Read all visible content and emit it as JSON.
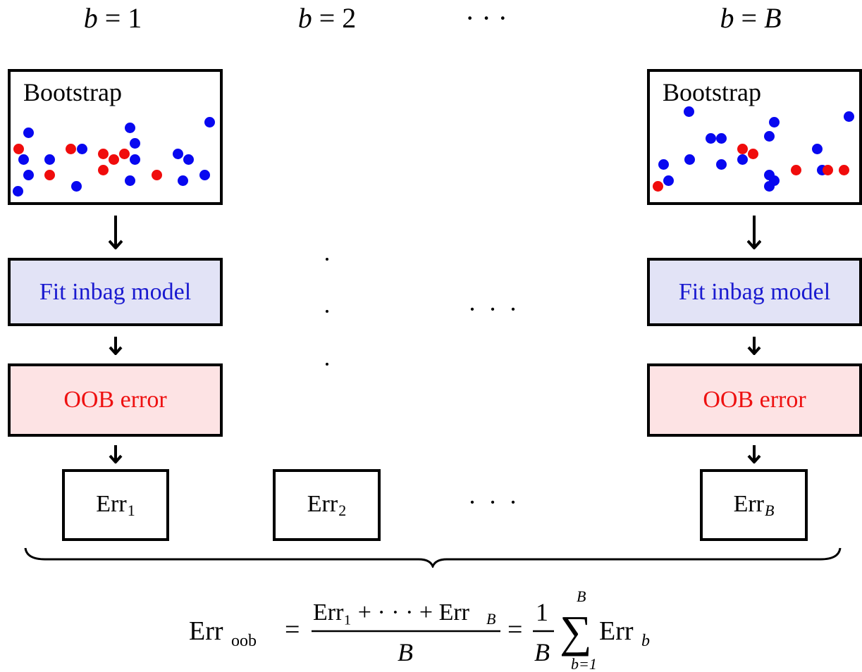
{
  "columns": [
    {
      "label_var": "b",
      "label_eq": "=",
      "label_val": "1"
    },
    {
      "label_var": "b",
      "label_eq": "=",
      "label_val": "2"
    },
    {
      "label_var": "",
      "label_eq": "",
      "label_val": "· · ·"
    },
    {
      "label_var": "b",
      "label_eq": "=",
      "label_val": "B"
    }
  ],
  "boxes": {
    "bootstrap": "Bootstrap",
    "fit": "Fit inbag model",
    "oob": "OOB error"
  },
  "errors": [
    {
      "base": "Err",
      "sub": "1"
    },
    {
      "base": "Err",
      "sub": "2"
    },
    {
      "base": "Err",
      "sub": "B"
    }
  ],
  "ellipsis": "· · ·",
  "formula": {
    "lhs_base": "Err",
    "lhs_sub": "oob",
    "eq": "=",
    "frac_num": "Err₁ + · · · + Err",
    "frac_num_sub": "B",
    "frac_den": "B",
    "eq2": "=",
    "coef_num": "1",
    "coef_den": "B",
    "sum_top": "B",
    "sum_sym": "∑",
    "sum_bottom": "b=1",
    "term_base": "Err",
    "term_sub": "b"
  },
  "colors": {
    "inbag_point": "#0808f0",
    "oob_point": "#f00c0c",
    "fit_fill": "#e2e3f6",
    "fit_text": "#1a1ad0",
    "oob_fill": "#fde3e4",
    "oob_text": "#ee1111"
  }
}
